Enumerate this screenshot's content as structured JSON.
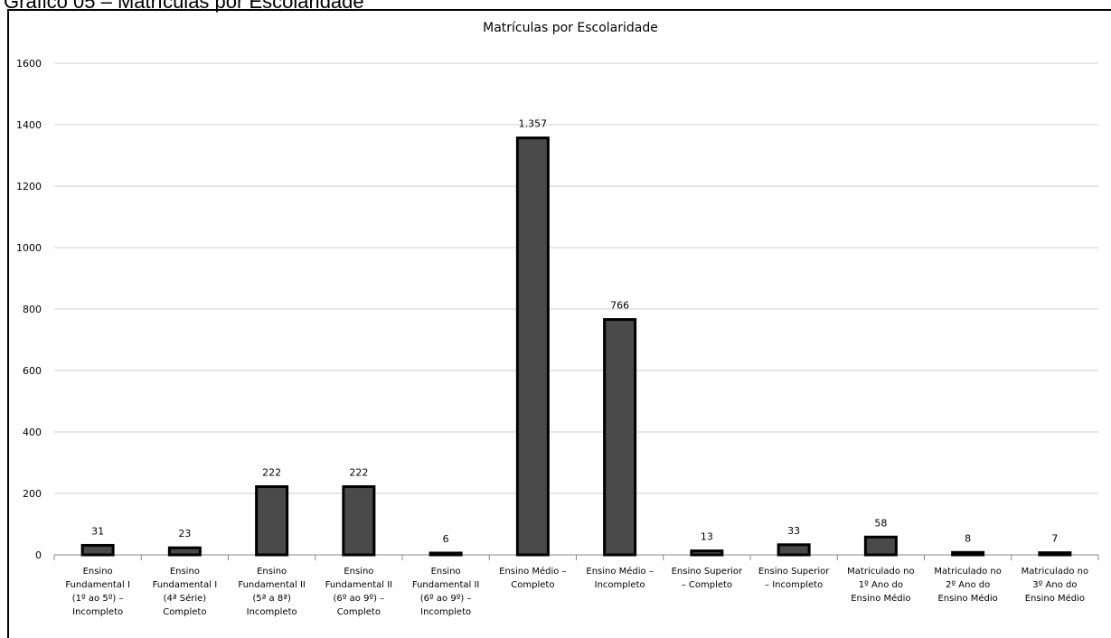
{
  "caption": "Gráfico 05 – Matrículas por Escolaridade",
  "colors": {
    "bar": "#4a4a4a",
    "bar_outline": "#000000",
    "grid": "#cfcfcf",
    "axis": "#888888",
    "text": "#000000"
  },
  "chart_data": {
    "type": "bar",
    "title": "Matrículas por Escolaridade",
    "xlabel": "",
    "ylabel": "",
    "ylim": [
      0,
      1600
    ],
    "yticks": [
      0,
      200,
      400,
      600,
      800,
      1000,
      1200,
      1400,
      1600
    ],
    "grid": true,
    "legend": "none",
    "categories": [
      [
        "Ensino",
        "Fundamental I",
        "(1º ao 5º) –",
        "Incompleto"
      ],
      [
        "Ensino",
        "Fundamental I",
        "(4ª Série)",
        "Completo"
      ],
      [
        "Ensino",
        "Fundamental II",
        "(5ª a 8ª)",
        "Incompleto"
      ],
      [
        "Ensino",
        "Fundamental II",
        "(6º ao 9º) –",
        "Completo"
      ],
      [
        "Ensino",
        "Fundamental II",
        "(6º ao 9º) –",
        "Incompleto"
      ],
      [
        "Ensino Médio –",
        "Completo"
      ],
      [
        "Ensino Médio –",
        "Incompleto"
      ],
      [
        "Ensino Superior",
        "– Completo"
      ],
      [
        "Ensino Superior",
        "– Incompleto"
      ],
      [
        "Matriculado no",
        "1º Ano do",
        "Ensino Médio"
      ],
      [
        "Matriculado no",
        "2º Ano do",
        "Ensino Médio"
      ],
      [
        "Matriculado no",
        "3º Ano do",
        "Ensino Médio"
      ]
    ],
    "values": [
      31,
      23,
      222,
      222,
      6,
      1357,
      766,
      13,
      33,
      58,
      8,
      7
    ],
    "data_labels": [
      "31",
      "23",
      "222",
      "222",
      "6",
      "1.357",
      "766",
      "13",
      "33",
      "58",
      "8",
      "7"
    ]
  }
}
